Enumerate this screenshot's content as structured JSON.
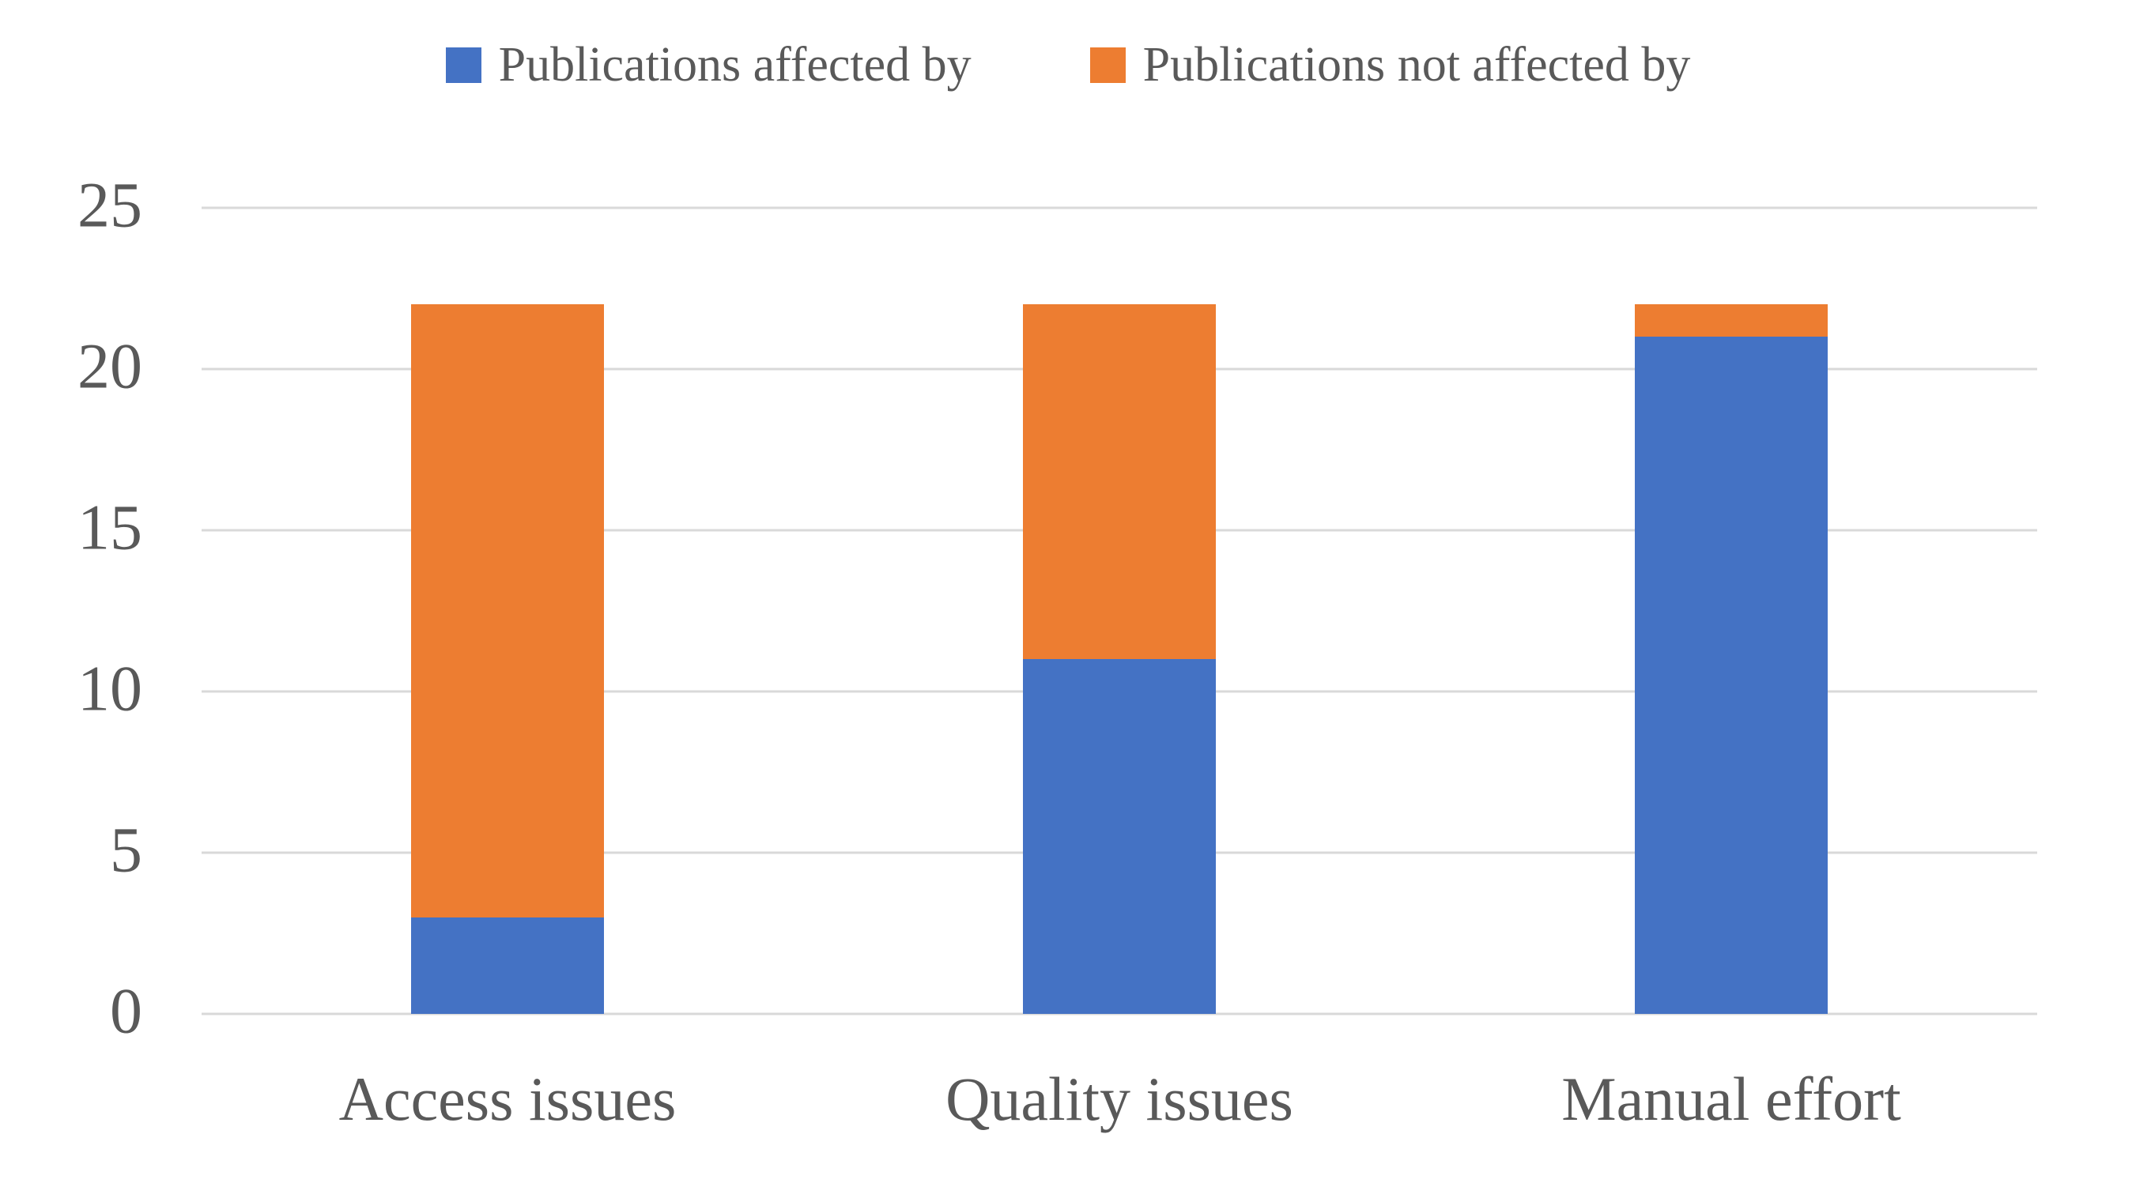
{
  "colors": {
    "series_affected": "#4472C4",
    "series_not_affected": "#ED7D31",
    "gridline": "#D9D9D9",
    "text": "#595959",
    "background": "#FFFFFF"
  },
  "chart_data": {
    "type": "bar",
    "stacked": true,
    "orientation": "vertical",
    "title": "",
    "xlabel": "",
    "ylabel": "",
    "categories": [
      "Access issues",
      "Quality issues",
      "Manual effort"
    ],
    "series": [
      {
        "name": "Publications affected by",
        "color": "#4472C4",
        "values": [
          3,
          11,
          21
        ]
      },
      {
        "name": "Publications not affected by",
        "color": "#ED7D31",
        "values": [
          19,
          11,
          1
        ]
      }
    ],
    "stack_totals": [
      22,
      22,
      22
    ],
    "ylim": [
      0,
      25
    ],
    "yticks": [
      0,
      5,
      10,
      15,
      20,
      25
    ],
    "grid": true,
    "legend_position": "top"
  }
}
